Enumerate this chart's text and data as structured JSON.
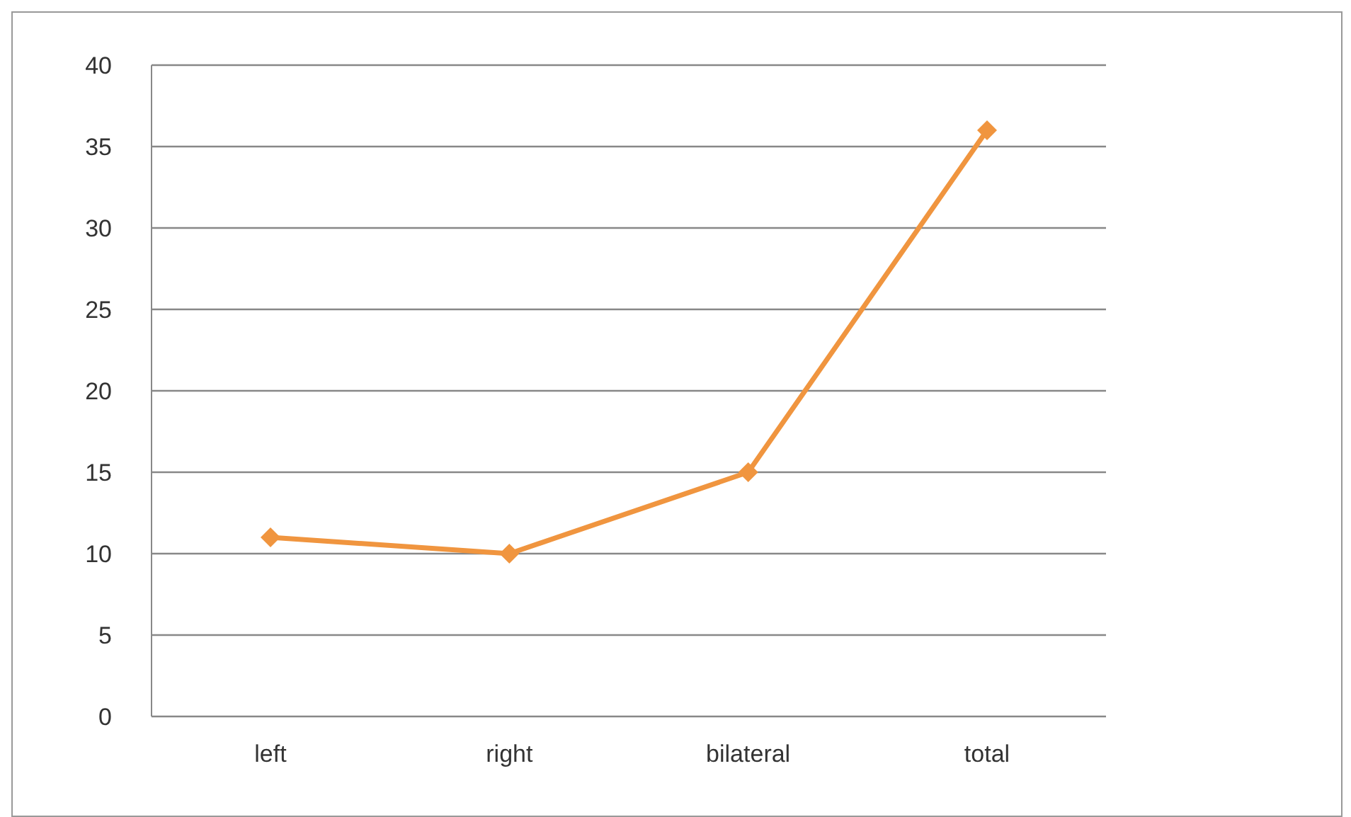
{
  "chart_data": {
    "type": "line",
    "categories": [
      "left",
      "right",
      "bilateral",
      "total"
    ],
    "series": [
      {
        "color": "#f0953f",
        "values": [
          11,
          10,
          15,
          36
        ]
      }
    ],
    "ylim": [
      0,
      40
    ],
    "yticks": [
      0,
      5,
      10,
      15,
      20,
      25,
      30,
      35,
      40
    ],
    "grid": "y",
    "marker": "diamond",
    "line_style": "solid"
  }
}
